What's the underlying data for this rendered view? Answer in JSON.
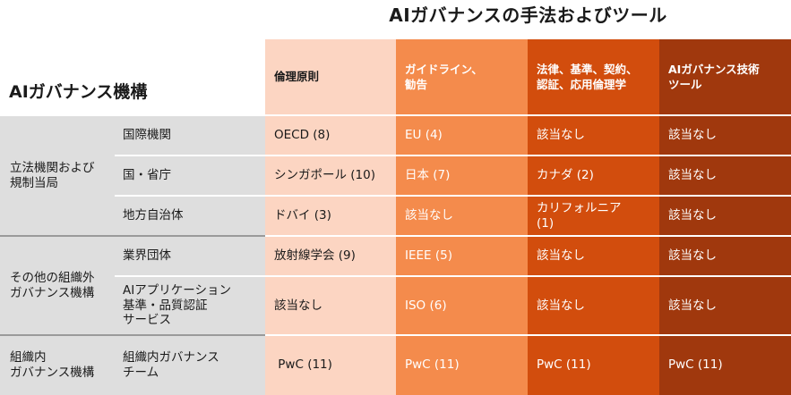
{
  "title": "AIガバナンスの手法およびツール",
  "row_header": "AIガバナンス機構",
  "colors": {
    "col1": "#fcd5c2",
    "col2": "#f48b4c",
    "col3": "#d24d0d",
    "col4": "#a0380d",
    "gray": "#dedede"
  },
  "columns": [
    {
      "label": "倫理原則"
    },
    {
      "label": "ガイドライン、\n勧告"
    },
    {
      "label": "法律、基準、契約、\n認証、応用倫理学"
    },
    {
      "label": "AIガバナンス技術\nツール"
    }
  ],
  "categories": [
    {
      "label": "立法機関および\n規制当局"
    },
    {
      "label": "その他の組織外\nガバナンス機構"
    },
    {
      "label": "組織内\nガバナンス機構"
    }
  ],
  "rows": [
    {
      "type": "国際機関",
      "cells": [
        "OECD (8)",
        "EU (4)",
        "該当なし",
        "該当なし"
      ]
    },
    {
      "type": "国・省庁",
      "cells": [
        "シンガポール (10)",
        "日本 (7)",
        "カナダ (2)",
        "該当なし"
      ]
    },
    {
      "type": "地方自治体",
      "cells": [
        "ドバイ (3)",
        "該当なし",
        "カリフォルニア\n(1)",
        "該当なし"
      ]
    },
    {
      "type": "業界団体",
      "cells": [
        "放射線学会 (9)",
        "IEEE (5)",
        "該当なし",
        "該当なし"
      ]
    },
    {
      "type": "AIアプリケーション\n基準・品質認証\nサービス",
      "cells": [
        "該当なし",
        "ISO (6)",
        "該当なし",
        "該当なし"
      ]
    },
    {
      "type": "組織内ガバナンス\nチーム",
      "cells": [
        " PwC (11)",
        "PwC (11)",
        "PwC (11)",
        "PwC (11)"
      ]
    }
  ]
}
